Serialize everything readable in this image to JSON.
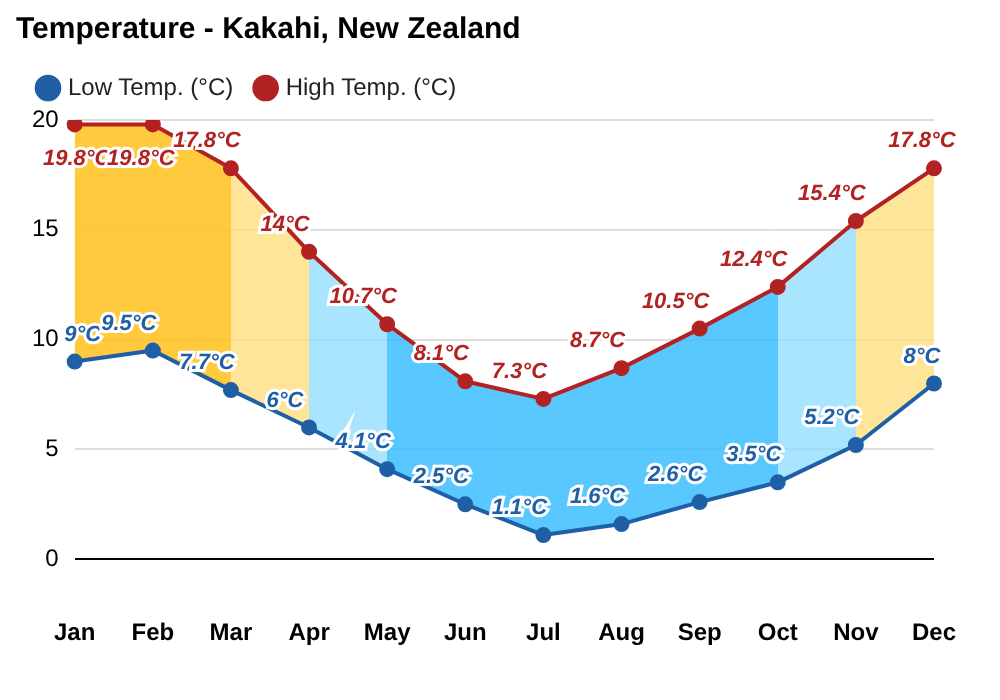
{
  "chart_data": {
    "type": "line",
    "title": "Temperature - Kakahi, New Zealand",
    "categories": [
      "Jan",
      "Feb",
      "Mar",
      "Apr",
      "May",
      "Jun",
      "Jul",
      "Aug",
      "Sep",
      "Oct",
      "Nov",
      "Dec"
    ],
    "series": [
      {
        "name": "Low Temp. (°C)",
        "color": "#1f5fa6",
        "values": [
          9,
          9.5,
          7.7,
          6,
          4.1,
          2.5,
          1.1,
          1.6,
          2.6,
          3.5,
          5.2,
          8
        ],
        "value_labels": [
          "9°C",
          "9.5°C",
          "7.7°C",
          "6°C",
          "4.1°C",
          "2.5°C",
          "1.1°C",
          "1.6°C",
          "2.6°C",
          "3.5°C",
          "5.2°C",
          "8°C"
        ]
      },
      {
        "name": "High Temp. (°C)",
        "color": "#b22222",
        "values": [
          19.8,
          19.8,
          17.8,
          14,
          10.7,
          8.1,
          7.3,
          8.7,
          10.5,
          12.4,
          15.4,
          17.8
        ],
        "value_labels": [
          "19.8°C",
          "19.8°C",
          "17.8°C",
          "14°C",
          "10.7°C",
          "8.1°C",
          "7.3°C",
          "8.7°C",
          "10.5°C",
          "12.4°C",
          "15.4°C",
          "17.8°C"
        ]
      }
    ],
    "ylim": [
      0,
      20
    ],
    "yticks": [
      0,
      5,
      10,
      15,
      20
    ],
    "grid": "y",
    "legend": "top left",
    "marker": "circle",
    "line_style": "solid"
  }
}
